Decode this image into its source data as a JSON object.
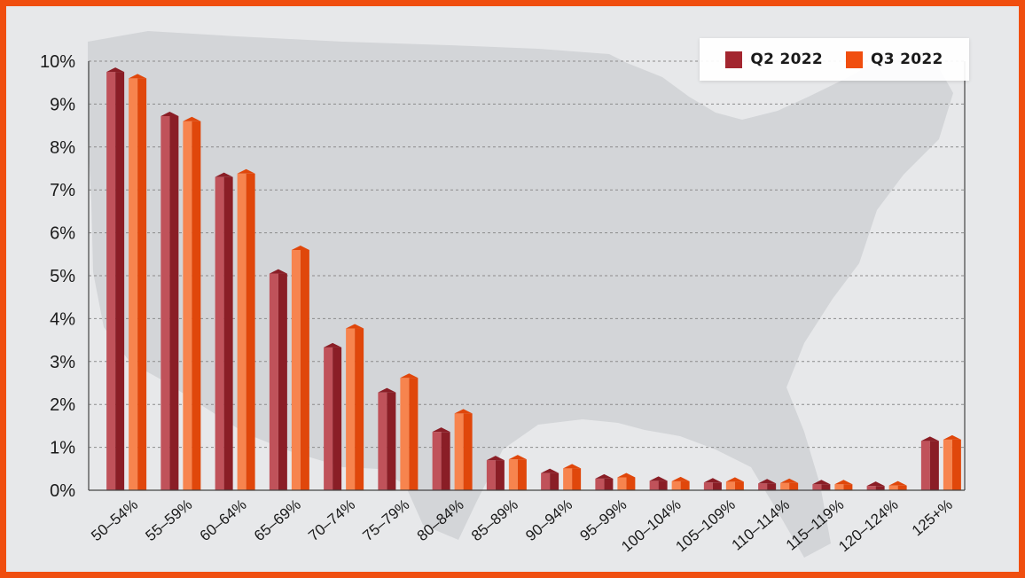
{
  "chart_data": {
    "type": "bar",
    "title": "",
    "xlabel": "",
    "ylabel": "",
    "categories": [
      "50–54%",
      "55–59%",
      "60–64%",
      "65–69%",
      "70–74%",
      "75–79%",
      "80–84%",
      "85–89%",
      "90–94%",
      "95–99%",
      "100–104%",
      "105–109%",
      "110–114%",
      "115–119%",
      "120–124%",
      "125+%"
    ],
    "series": [
      {
        "name": "Q2 2022",
        "color": "#a3262f",
        "values": [
          9.75,
          8.72,
          7.3,
          5.05,
          3.33,
          2.28,
          1.36,
          0.7,
          0.4,
          0.27,
          0.22,
          0.18,
          0.16,
          0.14,
          0.1,
          1.15
        ]
      },
      {
        "name": "Q3 2022",
        "color": "#f04e0f",
        "values": [
          9.6,
          8.6,
          7.38,
          5.6,
          3.77,
          2.62,
          1.79,
          0.72,
          0.51,
          0.3,
          0.21,
          0.2,
          0.17,
          0.14,
          0.11,
          1.18
        ]
      }
    ],
    "ylim": [
      0,
      10
    ],
    "yticks": [
      "0%",
      "1%",
      "2%",
      "3%",
      "4%",
      "5%",
      "6%",
      "7%",
      "8%",
      "9%",
      "10%"
    ],
    "grid": true,
    "legend": "top-right",
    "background": "map of the United States"
  }
}
